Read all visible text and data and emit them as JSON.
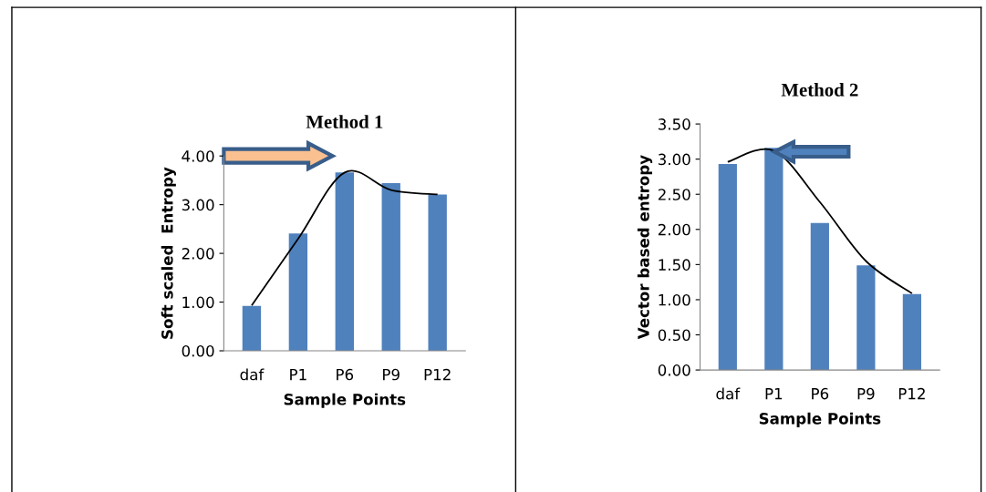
{
  "chart_data": [
    {
      "type": "bar",
      "title": "Method 1",
      "xlabel": "Sample Points",
      "ylabel": "Soft scaled  Entropy",
      "categories": [
        "daf",
        "P1",
        "P6",
        "P9",
        "P12"
      ],
      "series": [
        {
          "color": "#4f81bd",
          "values": [
            0.92,
            2.41,
            3.66,
            3.44,
            3.21
          ]
        },
        {
          "type": "line",
          "color": "#000000",
          "values": [
            0.93,
            2.3,
            3.66,
            3.3,
            3.21
          ]
        }
      ],
      "ylim": [
        0,
        4
      ],
      "yticks": [
        {
          "value": 0,
          "label": "0.00"
        },
        {
          "value": 1,
          "label": "1.00"
        },
        {
          "value": 2,
          "label": "2.00"
        },
        {
          "value": 3,
          "label": "3.00"
        },
        {
          "value": 4,
          "label": "4.00"
        }
      ],
      "legend": false
    },
    {
      "type": "bar",
      "title": "Method 2",
      "xlabel": "Sample Points",
      "ylabel": "Vector based entropy",
      "categories": [
        "daf",
        "P1",
        "P6",
        "P9",
        "P12"
      ],
      "series": [
        {
          "color": "#4f81bd",
          "values": [
            2.93,
            3.16,
            2.09,
            1.49,
            1.08
          ]
        },
        {
          "type": "line",
          "color": "#000000",
          "values": [
            2.96,
            3.12,
            2.39,
            1.55,
            1.09
          ]
        }
      ],
      "ylim": [
        0,
        3.5
      ],
      "yticks": [
        {
          "value": 0,
          "label": "0.00"
        },
        {
          "value": 0.5,
          "label": "0.50"
        },
        {
          "value": 1,
          "label": "1.00"
        },
        {
          "value": 1.5,
          "label": "1.50"
        },
        {
          "value": 2,
          "label": "2.00"
        },
        {
          "value": 2.5,
          "label": "2.50"
        },
        {
          "value": 3,
          "label": "3.00"
        },
        {
          "value": 3.5,
          "label": "3.50"
        }
      ],
      "legend": false
    }
  ]
}
